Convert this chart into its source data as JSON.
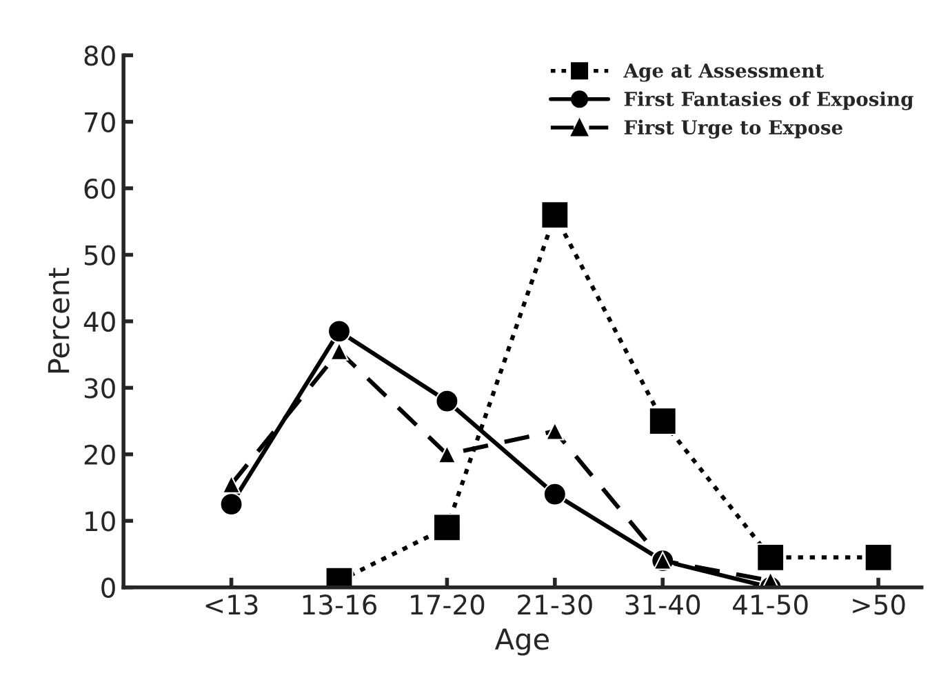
{
  "chart_data": {
    "type": "line",
    "xlabel": "Age",
    "ylabel": "Percent",
    "categories": [
      "<13",
      "13-16",
      "17-20",
      "21-30",
      "31-40",
      "41-50",
      ">50"
    ],
    "series": [
      {
        "name": "Age at Assessment",
        "color": "#000000",
        "marker": "square",
        "line_style": "dotted",
        "values": [
          null,
          1,
          9,
          56,
          25,
          4.5,
          4.5
        ]
      },
      {
        "name": "First Fantasies of Exposing",
        "color": "#000000",
        "marker": "circle",
        "line_style": "solid",
        "values": [
          12.5,
          38.5,
          28,
          14,
          4,
          0,
          null
        ]
      },
      {
        "name": "First Urge to Expose",
        "color": "#000000",
        "marker": "triangle",
        "line_style": "dashed",
        "values": [
          15.5,
          35.5,
          20,
          23.5,
          4,
          1,
          null
        ]
      }
    ],
    "ylim": [
      0,
      80
    ],
    "yticks": [
      0,
      10,
      20,
      30,
      40,
      50,
      60,
      70,
      80
    ],
    "grid": false,
    "legend": "top right"
  }
}
